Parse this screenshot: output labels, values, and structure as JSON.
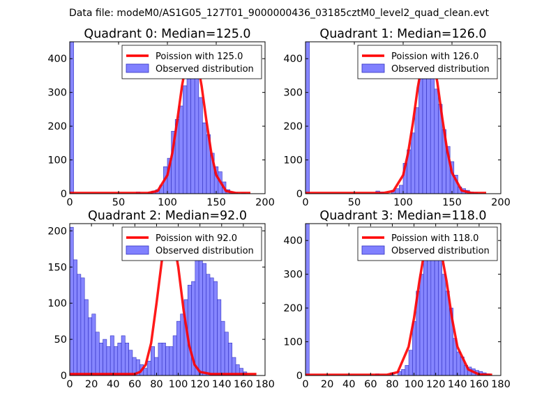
{
  "figure": {
    "suptitle": "Data file: modeM0/AS1G05_127T01_9000000436_03185cztM0_level2_quad_clean.evt"
  },
  "colors": {
    "hist_fill": "#8080ff",
    "hist_edge": "#3030c0",
    "poisson_line": "#ff0000",
    "legend_edge": "#000000"
  },
  "chart_data": [
    {
      "type": "bar",
      "title": "Quadrant 0: Median=125.0",
      "xlim": [
        0,
        200
      ],
      "ylim": [
        0,
        450
      ],
      "xticks": [
        "0",
        "50",
        "100",
        "150",
        "200"
      ],
      "yticks": [
        "0",
        "100",
        "200",
        "300",
        "400"
      ],
      "legend": [
        "Poission with 125.0",
        "Observed distribution"
      ],
      "hist": {
        "bin_width": 4,
        "bins": [
          [
            0,
            450
          ],
          [
            68,
            5
          ],
          [
            80,
            3
          ],
          [
            84,
            8
          ],
          [
            88,
            12
          ],
          [
            92,
            25
          ],
          [
            96,
            80
          ],
          [
            100,
            105
          ],
          [
            104,
            185
          ],
          [
            108,
            220
          ],
          [
            112,
            260
          ],
          [
            116,
            320
          ],
          [
            120,
            340
          ],
          [
            124,
            385
          ],
          [
            128,
            350
          ],
          [
            132,
            285
          ],
          [
            136,
            210
          ],
          [
            140,
            175
          ],
          [
            144,
            120
          ],
          [
            148,
            80
          ],
          [
            152,
            65
          ],
          [
            156,
            35
          ],
          [
            160,
            12
          ],
          [
            164,
            5
          ],
          [
            168,
            3
          ],
          [
            176,
            2
          ]
        ]
      },
      "poisson": {
        "x": [
          0,
          80,
          90,
          100,
          105,
          110,
          115,
          120,
          125,
          130,
          135,
          140,
          145,
          150,
          160,
          170,
          185
        ],
        "y": [
          2,
          2,
          8,
          55,
          120,
          215,
          320,
          400,
          425,
          400,
          320,
          215,
          120,
          55,
          8,
          2,
          2
        ]
      }
    },
    {
      "type": "bar",
      "title": "Quadrant 1: Median=126.0",
      "xlim": [
        0,
        200
      ],
      "ylim": [
        0,
        450
      ],
      "xticks": [
        "0",
        "50",
        "100",
        "150",
        "200"
      ],
      "yticks": [
        "0",
        "100",
        "200",
        "300",
        "400"
      ],
      "legend": [
        "Poission with 126.0",
        "Observed distribution"
      ],
      "hist": {
        "bin_width": 4,
        "bins": [
          [
            0,
            450
          ],
          [
            72,
            8
          ],
          [
            76,
            5
          ],
          [
            88,
            10
          ],
          [
            92,
            15
          ],
          [
            96,
            25
          ],
          [
            100,
            90
          ],
          [
            104,
            130
          ],
          [
            108,
            180
          ],
          [
            112,
            255
          ],
          [
            116,
            350
          ],
          [
            120,
            410
          ],
          [
            124,
            435
          ],
          [
            128,
            400
          ],
          [
            132,
            310
          ],
          [
            136,
            265
          ],
          [
            140,
            190
          ],
          [
            144,
            140
          ],
          [
            148,
            95
          ],
          [
            152,
            55
          ],
          [
            156,
            20
          ],
          [
            160,
            15
          ],
          [
            164,
            10
          ],
          [
            168,
            5
          ],
          [
            172,
            3
          ]
        ]
      },
      "poisson": {
        "x": [
          0,
          80,
          90,
          100,
          105,
          110,
          115,
          120,
          125,
          130,
          135,
          140,
          145,
          150,
          160,
          170,
          185
        ],
        "y": [
          2,
          2,
          8,
          55,
          120,
          210,
          315,
          395,
          425,
          405,
          330,
          225,
          130,
          62,
          9,
          2,
          2
        ]
      }
    },
    {
      "type": "bar",
      "title": "Quadrant 2: Median=92.0",
      "xlim": [
        0,
        180
      ],
      "ylim": [
        0,
        210
      ],
      "xticks": [
        "0",
        "20",
        "40",
        "60",
        "80",
        "100",
        "120",
        "140",
        "160",
        "180"
      ],
      "yticks": [
        "0",
        "50",
        "100",
        "150",
        "200"
      ],
      "legend": [
        "Poission with 92.0",
        "Observed distribution"
      ],
      "hist": {
        "bin_width": 3.4,
        "bins": [
          [
            0,
            205
          ],
          [
            3.4,
            160
          ],
          [
            6.8,
            140
          ],
          [
            10.2,
            135
          ],
          [
            13.6,
            105
          ],
          [
            17,
            80
          ],
          [
            20.4,
            85
          ],
          [
            23.8,
            60
          ],
          [
            27.2,
            45
          ],
          [
            30.6,
            50
          ],
          [
            34,
            40
          ],
          [
            37.4,
            55
          ],
          [
            40.8,
            40
          ],
          [
            44.2,
            45
          ],
          [
            47.6,
            55
          ],
          [
            51,
            45
          ],
          [
            54.4,
            35
          ],
          [
            57.8,
            25
          ],
          [
            61.2,
            22
          ],
          [
            64.6,
            15
          ],
          [
            68,
            10
          ],
          [
            71.4,
            20
          ],
          [
            74.8,
            40
          ],
          [
            78.2,
            25
          ],
          [
            81.6,
            45
          ],
          [
            85,
            45
          ],
          [
            88.4,
            40
          ],
          [
            91.8,
            40
          ],
          [
            95.2,
            55
          ],
          [
            98.6,
            75
          ],
          [
            102,
            85
          ],
          [
            105.4,
            105
          ],
          [
            108.8,
            125
          ],
          [
            112.2,
            130
          ],
          [
            115.6,
            160
          ],
          [
            119,
            165
          ],
          [
            122.4,
            155
          ],
          [
            125.8,
            140
          ],
          [
            129.2,
            135
          ],
          [
            132.6,
            130
          ],
          [
            136,
            105
          ],
          [
            139.4,
            75
          ],
          [
            142.8,
            60
          ],
          [
            146.2,
            45
          ],
          [
            149.6,
            25
          ],
          [
            153,
            15
          ],
          [
            156.4,
            10
          ],
          [
            159.8,
            5
          ]
        ]
      },
      "poisson": {
        "x": [
          0,
          60,
          65,
          70,
          75,
          80,
          85,
          88,
          92,
          96,
          100,
          105,
          110,
          115,
          120,
          130,
          172
        ],
        "y": [
          2,
          2,
          5,
          15,
          45,
          100,
          160,
          185,
          200,
          185,
          150,
          90,
          42,
          15,
          5,
          2,
          2
        ]
      }
    },
    {
      "type": "bar",
      "title": "Quadrant 3: Median=118.0",
      "xlim": [
        0,
        180
      ],
      "ylim": [
        0,
        450
      ],
      "xticks": [
        "0",
        "20",
        "40",
        "60",
        "80",
        "100",
        "120",
        "140",
        "160",
        "180"
      ],
      "yticks": [
        "0",
        "100",
        "200",
        "300",
        "400"
      ],
      "legend": [
        "Poission with 118.0",
        "Observed distribution"
      ],
      "hist": {
        "bin_width": 3.4,
        "bins": [
          [
            0,
            450
          ],
          [
            64.6,
            5
          ],
          [
            78.2,
            8
          ],
          [
            85,
            12
          ],
          [
            88.4,
            18
          ],
          [
            91.8,
            30
          ],
          [
            95.2,
            75
          ],
          [
            98.6,
            160
          ],
          [
            102,
            250
          ],
          [
            105.4,
            300
          ],
          [
            108.8,
            355
          ],
          [
            112.2,
            390
          ],
          [
            115.6,
            405
          ],
          [
            119,
            410
          ],
          [
            122.4,
            390
          ],
          [
            125.8,
            300
          ],
          [
            129.2,
            250
          ],
          [
            132.6,
            200
          ],
          [
            136,
            110
          ],
          [
            139.4,
            70
          ],
          [
            142.8,
            55
          ],
          [
            146.2,
            30
          ],
          [
            149.6,
            25
          ],
          [
            153,
            20
          ],
          [
            156.4,
            15
          ],
          [
            159.8,
            12
          ],
          [
            163.2,
            8
          ],
          [
            166.6,
            5
          ]
        ]
      },
      "poisson": {
        "x": [
          0,
          75,
          85,
          95,
          100,
          105,
          110,
          115,
          118,
          122,
          126,
          130,
          135,
          140,
          150,
          160,
          172
        ],
        "y": [
          2,
          2,
          10,
          85,
          170,
          280,
          375,
          425,
          430,
          410,
          350,
          280,
          170,
          85,
          18,
          3,
          2
        ]
      }
    }
  ]
}
